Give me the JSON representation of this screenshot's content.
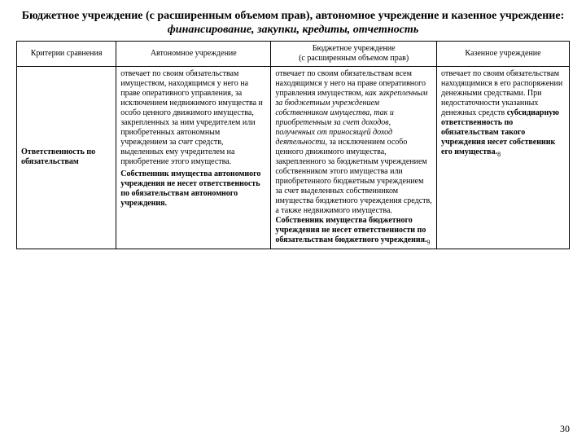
{
  "title_part1": "Бюджетное учреждение (с расширенным объемом прав), автономное учреждение и казенное учреждение: ",
  "title_part2": "финансирование, закупки, кредиты, отчетность",
  "headers": {
    "c0": "Критерии сравнения",
    "c1": "Автономное учреждение",
    "c2_line1": "Бюджетное учреждение",
    "c2_line2": "(с расширенным объемом прав)",
    "c3": "Казенное учреждение"
  },
  "row_label": "Ответственность по обязательствам",
  "cell1_p1": "отвечает по своим обязательствам имуществом, находящимся у него на праве оперативного управления, за исключением недвижимого имущества и особо ценного движимого имущества, закрепленных за ним учредителем или приобретенных автономным учреждением за счет средств, выделенных ему учредителем на приобретение этого имущества.",
  "cell1_p2": "Собственник имущества автономного учреждения не несет ответственность по обязательствам автономного учреждения.",
  "cell2_a": "отвечает по своим обязательствам всем находящимся у него на праве оперативного управления имуществом, ",
  "cell2_b": "как закрепленным за бюджетным учреждением собственником имущества, так и приобретенным за счет доходов, полученных от приносящей доход деятельности",
  "cell2_c": ", за исключением особо ценного движимого имущества, закрепленного за бюджетным учреждением собственником этого имущества или приобретенного бюджетным учреждением за счет выделенных собственником имущества бюджетного учреждения средств, а также недвижимого имущества. ",
  "cell2_d": "Собственник имущества бюджетного учреждения не несет ответственности по обязательствам бюджетного учреждения.",
  "cell2_e": "9",
  "cell3_a": "отвечает по своим обязательствам находящимися в его распоряжении денежными средствами. При недостаточности указанных денежных средств ",
  "cell3_b": "субсидиарную ответственность по обязательствам такого учреждения несет собственник его имущества.",
  "cell3_c": "8",
  "page_number": "30"
}
